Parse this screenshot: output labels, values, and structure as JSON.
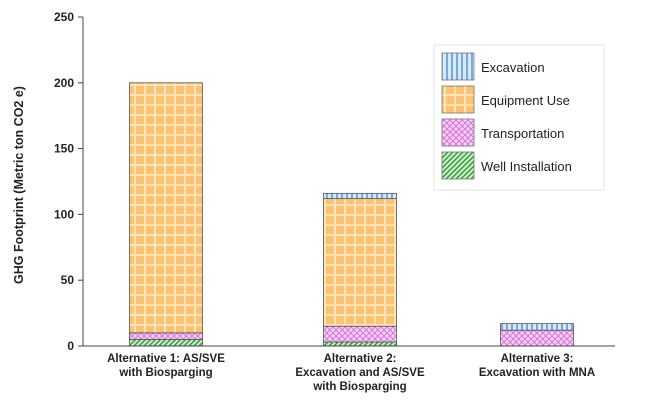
{
  "chart_data": {
    "type": "bar",
    "stacked": true,
    "ylabel": "GHG Footprint (Metric ton CO2 e)",
    "xlabel": "",
    "ylim": [
      0,
      250
    ],
    "yticks": [
      "0",
      "50",
      "100",
      "150",
      "200",
      "250"
    ],
    "grid": false,
    "legend_position": "top-right",
    "categories": [
      [
        "Alternative 1: AS/SVE",
        "with Biosparging"
      ],
      [
        "Alternative 2:",
        "Excavation and AS/SVE",
        "with Biosparging"
      ],
      [
        "Alternative 3:",
        "Excavation with MNA"
      ]
    ],
    "series": [
      {
        "name": "Well Installation",
        "values": [
          5,
          3,
          0
        ],
        "color": "#5cc35c",
        "pattern": "diagonal-hatch"
      },
      {
        "name": "Transportation",
        "values": [
          5,
          12,
          12
        ],
        "color": "#f2b8f2",
        "pattern": "crosshatch"
      },
      {
        "name": "Equipment Use",
        "values": [
          190,
          97,
          0
        ],
        "color": "#fbc272",
        "pattern": "grid"
      },
      {
        "name": "Excavation",
        "values": [
          0,
          4,
          5
        ],
        "color": "#b3d2f2",
        "pattern": "vertical-stripes"
      }
    ],
    "legend_order": [
      "Excavation",
      "Equipment Use",
      "Transportation",
      "Well Installation"
    ]
  }
}
